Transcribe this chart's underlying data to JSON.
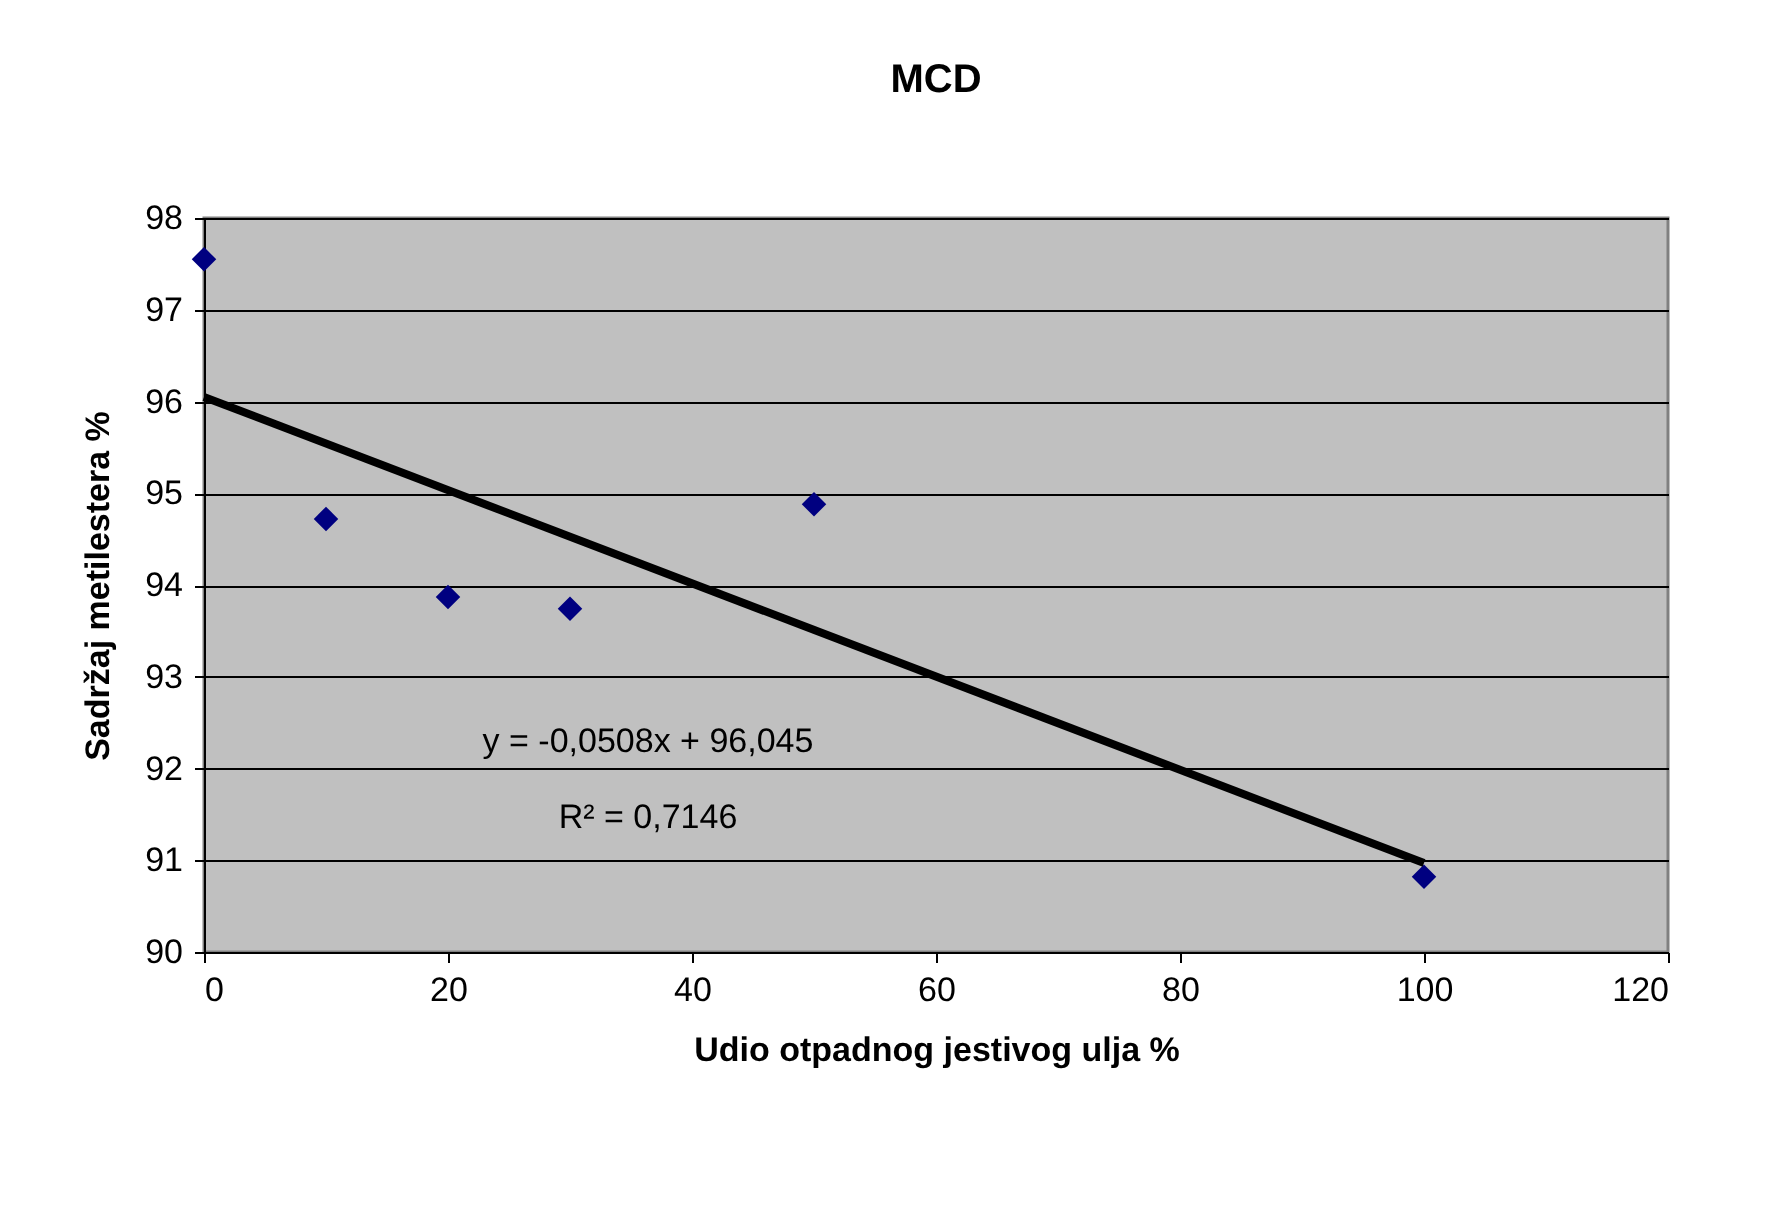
{
  "chart_data": {
    "type": "scatter",
    "title": "MCD",
    "xlabel": "Udio otpadnog jestivog ulja %",
    "ylabel": "Sadržaj metilestera %",
    "series": [
      {
        "color": "#000080",
        "marker": "diamond",
        "x": [
          0,
          10,
          20,
          30,
          50,
          100
        ],
        "values": [
          97.55,
          94.72,
          93.87,
          93.74,
          94.88,
          90.82
        ]
      },
      {
        "type": "line",
        "color": "#000000",
        "line_style": "solid",
        "x": [
          0,
          100
        ],
        "values": [
          96.05,
          90.97
        ]
      }
    ],
    "annotations": [
      "y = -0,0508x + 96,045",
      "R² = 0,7146"
    ],
    "xlim": [
      0,
      120
    ],
    "xticks": [
      0,
      20,
      40,
      60,
      80,
      100,
      120
    ],
    "ylim": [
      90,
      98
    ],
    "yticks": [
      90,
      91,
      92,
      93,
      94,
      95,
      96,
      97,
      98
    ],
    "grid": "y"
  }
}
